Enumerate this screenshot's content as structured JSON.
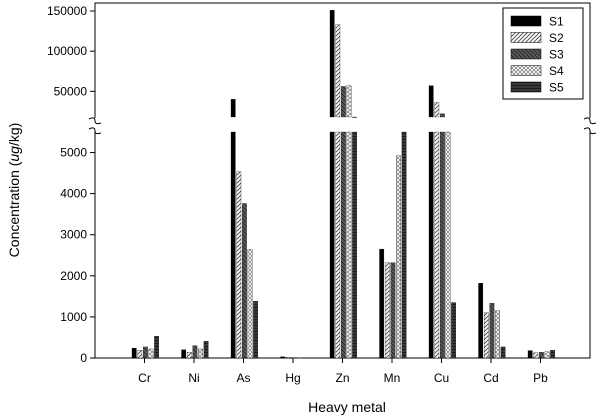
{
  "chart_data": {
    "type": "bar",
    "title": "",
    "xlabel": "Heavy metal",
    "ylabel_pre": "Concentration (",
    "ylabel_unit_italic": "ug",
    "ylabel_post": "/kg)",
    "categories": [
      "Cr",
      "Ni",
      "As",
      "Hg",
      "Zn",
      "Mn",
      "Cu",
      "Cd",
      "Pb"
    ],
    "series": [
      {
        "name": "S1",
        "values": [
          240,
          200,
          40000,
          30,
          151000,
          2650,
          57000,
          1820,
          180
        ]
      },
      {
        "name": "S2",
        "values": [
          190,
          140,
          4530,
          20,
          133000,
          2320,
          36000,
          1100,
          130
        ]
      },
      {
        "name": "S3",
        "values": [
          270,
          300,
          3760,
          10,
          56000,
          2320,
          22000,
          1330,
          140
        ]
      },
      {
        "name": "S4",
        "values": [
          220,
          220,
          2640,
          10,
          57000,
          4920,
          16000,
          1150,
          150
        ]
      },
      {
        "name": "S5",
        "values": [
          530,
          410,
          1380,
          5,
          18000,
          8000,
          1350,
          270,
          190
        ]
      }
    ],
    "axis_break": true,
    "y_lower": {
      "ylim": [
        0,
        5500
      ],
      "ticks": [
        0,
        1000,
        2000,
        3000,
        4000,
        5000
      ]
    },
    "y_upper": {
      "ylim": [
        18000,
        155000
      ],
      "ticks": [
        50000,
        100000,
        150000
      ]
    },
    "legend_position": "top-right",
    "grid": false
  }
}
